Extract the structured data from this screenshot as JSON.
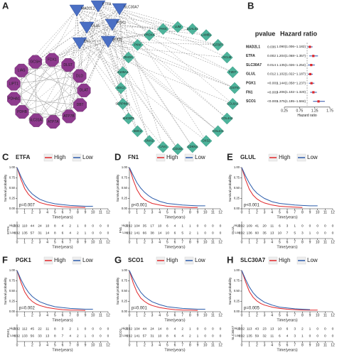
{
  "network": {
    "panel": "A",
    "hubs": [
      "MAD2L1",
      "ETFA",
      "SLC30A7",
      "GLUL",
      "PGK1",
      "FN1",
      "SCO1"
    ],
    "cuproptosis_genes": [
      "GCSH",
      "FDX1",
      "DLST",
      "DLD",
      "DLAT",
      "DBT",
      "ATP7B",
      "ATP7A",
      "SLC31A1",
      "PDHB",
      "PDHA1",
      "LIPT1",
      "LIAS"
    ],
    "targets": [
      "LUM",
      "LGALS1",
      "LAMB1",
      "IGFBP7",
      "GCLM",
      "FZD7",
      "DSTN",
      "COL6A2",
      "COL4A2",
      "COL4A1",
      "CKS2",
      "CDKN3",
      "CD163",
      "CAV1",
      "SNAI2",
      "SMC4",
      "SHCBP1",
      "SERPINE1",
      "SDC2",
      "S100A4",
      "RHOA",
      "PKM",
      "PRDX4",
      "PAK5"
    ]
  },
  "chart_data": [
    {
      "type": "forest",
      "panel": "B",
      "columns": [
        "pvalue",
        "Hazard ratio"
      ],
      "categories": [
        "MAD2L1",
        "ETFA",
        "SLC30A7",
        "GLUL",
        "PGK1",
        "FN1",
        "SCO1"
      ],
      "pvalues": [
        "0.036",
        "0.002",
        "0.014",
        "0.012",
        "<0.001",
        "<0.001",
        "<0.001"
      ],
      "values": [
        1.09,
        1.204,
        1.135,
        1.102,
        1.144,
        1.206,
        1.375
      ],
      "lower": [
        1.006,
        1.068,
        1.026,
        1.022,
        1.058,
        1.102,
        1.195
      ],
      "upper": [
        1.182,
        1.357,
        1.254,
        1.187,
        1.237,
        1.32,
        1.584
      ],
      "value_labels": [
        "1.090(1.006−1.182)",
        "1.204(1.068−1.357)",
        "1.135(1.026−1.254)",
        "1.102(1.022−1.187)",
        "1.144(1.058−1.237)",
        "1.206(1.102−1.320)",
        "1.375(1.195−1.584)"
      ],
      "xlim": [
        0.25,
        1.75
      ],
      "xticks": [
        0.25,
        0.75,
        1.25,
        1.75
      ],
      "xlabel": "Hazard ratio",
      "reference_line": 1,
      "point_color": "#e0262a",
      "ci_color": "#2b4fa8"
    },
    {
      "type": "km",
      "panel": "C",
      "title": "ETFA",
      "pvalue": "p=0.007",
      "x": [
        0,
        0.5,
        1,
        1.5,
        2,
        2.5,
        3,
        4,
        5,
        6,
        7,
        8,
        9,
        10
      ],
      "series": [
        {
          "name": "High",
          "color": "#e0262a",
          "values": [
            1,
            0.72,
            0.49,
            0.35,
            0.26,
            0.2,
            0.15,
            0.1,
            0.07,
            0.05,
            0.04,
            0.04,
            0.03,
            null
          ],
          "risk": [
            232,
            110,
            44,
            24,
            10,
            8,
            4,
            2,
            1,
            0,
            0,
            0,
            0
          ]
        },
        {
          "name": "Low",
          "color": "#2b5cab",
          "values": [
            1,
            0.79,
            0.6,
            0.46,
            0.36,
            0.29,
            0.23,
            0.16,
            0.12,
            0.1,
            0.08,
            0.07,
            0.06,
            0.06
          ],
          "risk": [
            232,
            135,
            57,
            31,
            14,
            8,
            6,
            4,
            2,
            1,
            0,
            0,
            0
          ]
        }
      ],
      "xlim": [
        0,
        12
      ],
      "xticks": [
        0,
        1,
        2,
        3,
        4,
        5,
        6,
        7,
        8,
        9,
        10,
        11,
        12
      ],
      "ylim": [
        0,
        1
      ],
      "yticks": [
        {
          "value": 0,
          "label": "0.00"
        },
        {
          "value": 0.25,
          "label": "0.25"
        },
        {
          "value": 0.5,
          "label": "0.50"
        },
        {
          "value": 0.75,
          "label": "0.75"
        },
        {
          "value": 1,
          "label": "1.00"
        }
      ],
      "xlabel": "Time(years)",
      "ylabel": "Survival probability"
    },
    {
      "type": "km",
      "panel": "D",
      "title": "FN1",
      "pvalue": "p<0.001",
      "x": [
        0,
        0.5,
        1,
        1.5,
        2,
        2.5,
        3,
        4,
        5,
        6,
        7,
        8,
        9,
        10
      ],
      "series": [
        {
          "name": "High",
          "color": "#e0262a",
          "values": [
            1,
            0.7,
            0.46,
            0.31,
            0.22,
            0.17,
            0.13,
            0.09,
            0.06,
            0.05,
            0.04,
            0.03,
            0.03,
            null
          ],
          "risk": [
            232,
            104,
            35,
            17,
            10,
            6,
            4,
            1,
            1,
            0,
            0,
            0,
            0
          ]
        },
        {
          "name": "Low",
          "color": "#2b5cab",
          "values": [
            1,
            0.81,
            0.63,
            0.5,
            0.4,
            0.32,
            0.26,
            0.18,
            0.13,
            0.11,
            0.09,
            0.08,
            0.07,
            0.07
          ],
          "risk": [
            232,
            141,
            66,
            38,
            14,
            10,
            6,
            5,
            2,
            1,
            0,
            0,
            0
          ]
        }
      ],
      "xlim": [
        0,
        12
      ],
      "xticks": [
        0,
        1,
        2,
        3,
        4,
        5,
        6,
        7,
        8,
        9,
        10,
        11,
        12
      ],
      "ylim": [
        0,
        1
      ],
      "yticks": [
        {
          "value": 0,
          "label": "0.00"
        },
        {
          "value": 0.25,
          "label": "0.25"
        },
        {
          "value": 0.5,
          "label": "0.50"
        },
        {
          "value": 0.75,
          "label": "0.75"
        },
        {
          "value": 1,
          "label": "1.00"
        }
      ],
      "xlabel": "Time(years)",
      "ylabel": "Survival probability"
    },
    {
      "type": "km",
      "panel": "E",
      "title": "GLUL",
      "pvalue": "p<0.001",
      "x": [
        0,
        0.5,
        1,
        1.5,
        2,
        2.5,
        3,
        4,
        5,
        6,
        7,
        8,
        9,
        10
      ],
      "series": [
        {
          "name": "High",
          "color": "#e0262a",
          "values": [
            1,
            0.71,
            0.47,
            0.33,
            0.24,
            0.18,
            0.14,
            0.09,
            0.06,
            0.05,
            0.04,
            0.03,
            null,
            null
          ],
          "risk": [
            232,
            109,
            41,
            20,
            11,
            6,
            3,
            1,
            0,
            0,
            0,
            0,
            0
          ]
        },
        {
          "name": "Low",
          "color": "#2b5cab",
          "values": [
            1,
            0.8,
            0.62,
            0.48,
            0.38,
            0.31,
            0.25,
            0.17,
            0.13,
            0.11,
            0.09,
            0.08,
            0.07,
            0.07
          ],
          "risk": [
            232,
            136,
            60,
            35,
            13,
            10,
            7,
            5,
            3,
            1,
            0,
            0,
            0
          ]
        }
      ],
      "xlim": [
        0,
        12
      ],
      "xticks": [
        0,
        1,
        2,
        3,
        4,
        5,
        6,
        7,
        8,
        9,
        10,
        11,
        12
      ],
      "ylim": [
        0,
        1
      ],
      "yticks": [
        {
          "value": 0,
          "label": "0.00"
        },
        {
          "value": 0.25,
          "label": "0.25"
        },
        {
          "value": 0.5,
          "label": "0.50"
        },
        {
          "value": 0.75,
          "label": "0.75"
        },
        {
          "value": 1,
          "label": "1.00"
        }
      ],
      "xlabel": "Time(years)",
      "ylabel": "Survival probability"
    },
    {
      "type": "km",
      "panel": "F",
      "title": "PGK1",
      "pvalue": "p=0.002",
      "x": [
        0,
        0.5,
        1,
        1.5,
        2,
        2.5,
        3,
        4,
        5,
        6,
        7,
        8,
        9,
        10
      ],
      "series": [
        {
          "name": "High",
          "color": "#e0262a",
          "values": [
            1,
            0.72,
            0.48,
            0.34,
            0.25,
            0.19,
            0.15,
            0.1,
            0.07,
            0.05,
            0.04,
            0.04,
            0.03,
            null
          ],
          "risk": [
            232,
            112,
            45,
            22,
            11,
            8,
            3,
            2,
            1,
            0,
            0,
            0,
            0
          ]
        },
        {
          "name": "Low",
          "color": "#2b5cab",
          "values": [
            1,
            0.79,
            0.61,
            0.47,
            0.37,
            0.3,
            0.24,
            0.17,
            0.12,
            0.1,
            0.08,
            0.07,
            0.06,
            0.06
          ],
          "risk": [
            232,
            133,
            56,
            33,
            13,
            8,
            7,
            4,
            2,
            1,
            0,
            0,
            0
          ]
        }
      ],
      "xlim": [
        0,
        12
      ],
      "xticks": [
        0,
        1,
        2,
        3,
        4,
        5,
        6,
        7,
        8,
        9,
        10,
        11,
        12
      ],
      "ylim": [
        0,
        1
      ],
      "yticks": [
        {
          "value": 0,
          "label": "0.00"
        },
        {
          "value": 0.25,
          "label": "0.25"
        },
        {
          "value": 0.5,
          "label": "0.50"
        },
        {
          "value": 0.75,
          "label": "0.75"
        },
        {
          "value": 1,
          "label": "1.00"
        }
      ],
      "xlabel": "Time(years)",
      "ylabel": "Survival probability"
    },
    {
      "type": "km",
      "panel": "G",
      "title": "SCO1",
      "pvalue": "p=0.001",
      "x": [
        0,
        0.5,
        1,
        1.5,
        2,
        2.5,
        3,
        4,
        5,
        6,
        7,
        8,
        9,
        10
      ],
      "series": [
        {
          "name": "High",
          "color": "#e0262a",
          "values": [
            1,
            0.7,
            0.47,
            0.33,
            0.25,
            0.19,
            0.15,
            0.1,
            0.07,
            0.05,
            0.04,
            0.04,
            0.03,
            null
          ],
          "risk": [
            232,
            104,
            44,
            24,
            14,
            8,
            4,
            2,
            1,
            0,
            0,
            0,
            0
          ]
        },
        {
          "name": "Low",
          "color": "#2b5cab",
          "values": [
            1,
            0.8,
            0.62,
            0.47,
            0.37,
            0.3,
            0.24,
            0.17,
            0.12,
            0.1,
            0.08,
            0.07,
            0.06,
            0.06
          ],
          "risk": [
            232,
            141,
            57,
            31,
            10,
            8,
            6,
            4,
            2,
            1,
            0,
            0,
            0
          ]
        }
      ],
      "xlim": [
        0,
        12
      ],
      "xticks": [
        0,
        1,
        2,
        3,
        4,
        5,
        6,
        7,
        8,
        9,
        10,
        11,
        12
      ],
      "ylim": [
        0,
        1
      ],
      "yticks": [
        {
          "value": 0,
          "label": "0.00"
        },
        {
          "value": 0.25,
          "label": "0.25"
        },
        {
          "value": 0.5,
          "label": "0.50"
        },
        {
          "value": 0.75,
          "label": "0.75"
        },
        {
          "value": 1,
          "label": "1.00"
        }
      ],
      "xlabel": "Time(years)",
      "ylabel": "Survival probability"
    },
    {
      "type": "km",
      "panel": "H",
      "title": "SLC30A7",
      "pvalue": "p=0.005",
      "x": [
        0,
        0.5,
        1,
        1.5,
        2,
        2.5,
        3,
        4,
        5,
        6,
        7,
        8,
        9,
        10
      ],
      "series": [
        {
          "name": "High",
          "color": "#e0262a",
          "values": [
            1,
            0.73,
            0.49,
            0.35,
            0.26,
            0.2,
            0.16,
            0.11,
            0.08,
            0.06,
            0.05,
            0.04,
            0.04,
            0.04
          ],
          "risk": [
            232,
            113,
            43,
            23,
            13,
            10,
            6,
            3,
            2,
            1,
            0,
            0,
            0
          ]
        },
        {
          "name": "Low",
          "color": "#2b5cab",
          "values": [
            1,
            0.79,
            0.6,
            0.46,
            0.36,
            0.29,
            0.23,
            0.16,
            0.11,
            0.09,
            0.07,
            0.06,
            0.05,
            null
          ],
          "risk": [
            232,
            135,
            59,
            32,
            11,
            6,
            4,
            3,
            1,
            0,
            0,
            0,
            0
          ]
        }
      ],
      "xlim": [
        0,
        12
      ],
      "xticks": [
        0,
        1,
        2,
        3,
        4,
        5,
        6,
        7,
        8,
        9,
        10,
        11,
        12
      ],
      "ylim": [
        0,
        1
      ],
      "yticks": [
        {
          "value": 0,
          "label": "0.00"
        },
        {
          "value": 0.25,
          "label": "0.25"
        },
        {
          "value": 0.5,
          "label": "0.50"
        },
        {
          "value": 0.75,
          "label": "0.75"
        },
        {
          "value": 1,
          "label": "1.00"
        }
      ],
      "xlabel": "Time(years)",
      "ylabel": "Survival probability"
    }
  ]
}
